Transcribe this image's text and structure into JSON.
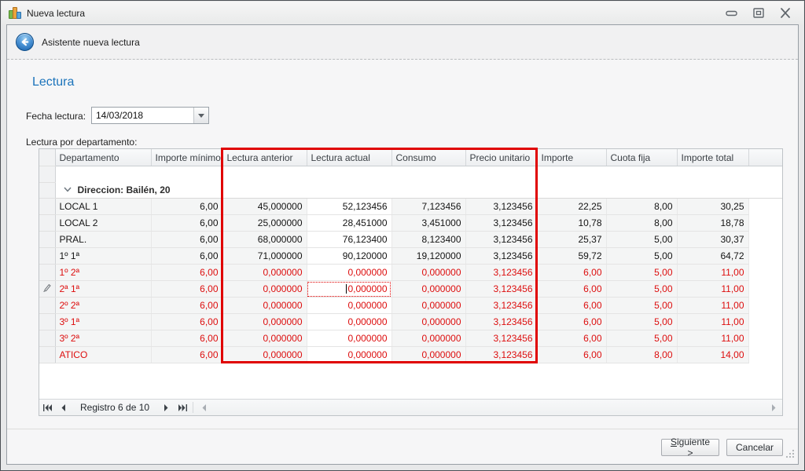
{
  "window": {
    "title": "Nueva lectura"
  },
  "wizard": {
    "header": "Asistente nueva lectura"
  },
  "page": {
    "heading": "Lectura",
    "date_label": "Fecha lectura:",
    "date_value": "14/03/2018",
    "grid_label": "Lectura por departamento:"
  },
  "grid": {
    "columns": [
      "Departamento",
      "Importe mínimo",
      "Lectura anterior",
      "Lectura actual",
      "Consumo",
      "Precio unitario",
      "Importe",
      "Cuota fija",
      "Importe total"
    ],
    "group": {
      "label": "Direccion: Bailén, 20"
    },
    "rows": [
      {
        "name": "LOCAL 1",
        "state": "normal",
        "values": [
          "6,00",
          "45,000000",
          "52,123456",
          "7,123456",
          "3,123456",
          "22,25",
          "8,00",
          "30,25"
        ]
      },
      {
        "name": "LOCAL 2",
        "state": "normal",
        "values": [
          "6,00",
          "25,000000",
          "28,451000",
          "3,451000",
          "3,123456",
          "10,78",
          "8,00",
          "18,78"
        ]
      },
      {
        "name": "PRAL.",
        "state": "normal",
        "values": [
          "6,00",
          "68,000000",
          "76,123400",
          "8,123400",
          "3,123456",
          "25,37",
          "5,00",
          "30,37"
        ]
      },
      {
        "name": "1º 1ª",
        "state": "normal",
        "values": [
          "6,00",
          "71,000000",
          "90,120000",
          "19,120000",
          "3,123456",
          "59,72",
          "5,00",
          "64,72"
        ]
      },
      {
        "name": "1º 2ª",
        "state": "red",
        "values": [
          "6,00",
          "0,000000",
          "0,000000",
          "0,000000",
          "3,123456",
          "6,00",
          "5,00",
          "11,00"
        ]
      },
      {
        "name": "2ª 1ª",
        "state": "red",
        "values": [
          "6,00",
          "0,000000",
          "0,000000",
          "0,000000",
          "3,123456",
          "6,00",
          "5,00",
          "11,00"
        ],
        "editing": true
      },
      {
        "name": "2º 2ª",
        "state": "red",
        "values": [
          "6,00",
          "0,000000",
          "0,000000",
          "0,000000",
          "3,123456",
          "6,00",
          "5,00",
          "11,00"
        ]
      },
      {
        "name": "3º 1ª",
        "state": "red",
        "values": [
          "6,00",
          "0,000000",
          "0,000000",
          "0,000000",
          "3,123456",
          "6,00",
          "5,00",
          "11,00"
        ]
      },
      {
        "name": "3º 2ª",
        "state": "red",
        "values": [
          "6,00",
          "0,000000",
          "0,000000",
          "0,000000",
          "3,123456",
          "6,00",
          "5,00",
          "11,00"
        ]
      },
      {
        "name": "ATICO",
        "state": "red",
        "values": [
          "6,00",
          "0,000000",
          "0,000000",
          "0,000000",
          "3,123456",
          "6,00",
          "8,00",
          "14,00"
        ]
      }
    ],
    "editing": {
      "row_index": 5,
      "value_column_index": 2,
      "value": "0,000000"
    },
    "nav": {
      "label": "Registro 6 de 10"
    },
    "icons": [
      "collapse-chevron-icon",
      "edit-pencil-icon",
      "nav-first-icon",
      "nav-prev-icon",
      "nav-next-icon",
      "nav-last-icon",
      "scroll-left-icon",
      "scroll-right-icon"
    ]
  },
  "footer": {
    "next_accel": "S",
    "next_rest": "iguiente >",
    "cancel": "Cancelar"
  },
  "colors": {
    "highlight_rect": "#e00000",
    "red_text": "#dd0e0e",
    "heading_blue": "#1c74bb"
  }
}
